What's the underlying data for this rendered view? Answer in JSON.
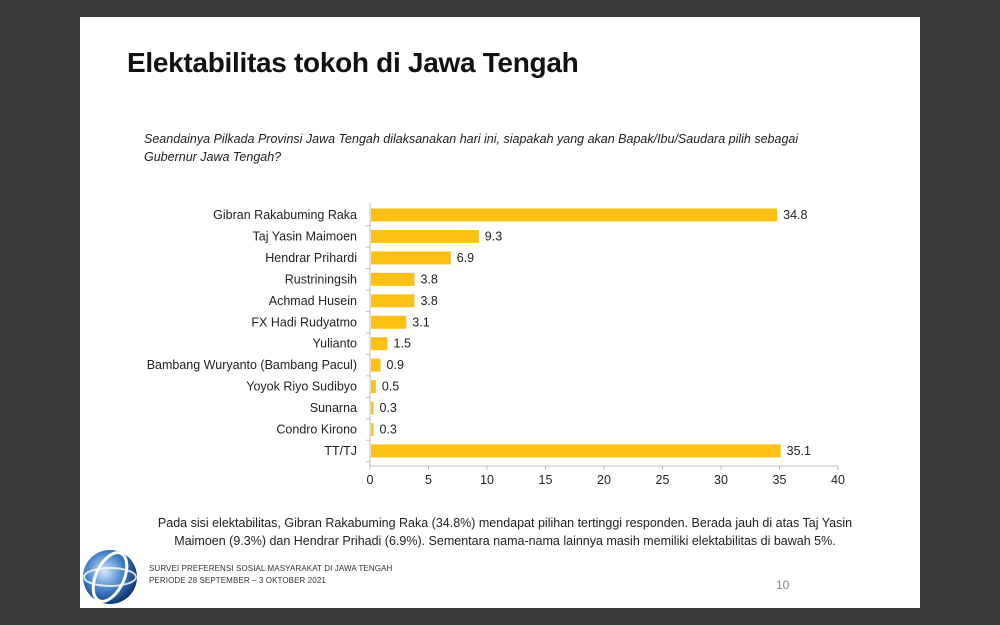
{
  "slide": {
    "title": "Elektabilitas tokoh di Jawa Tengah",
    "question": "Seandainya Pilkada Provinsi Jawa Tengah dilaksanakan hari ini, siapakah yang akan Bapak/Ibu/Saudara pilih sebagai Gubernur Jawa Tengah?",
    "summary": "Pada sisi elektabilitas, Gibran Rakabuming Raka (34.8%) mendapat pilihan tertinggi responden. Berada jauh di atas Taj Yasin Maimoen (9.3%) dan Hendrar Prihadi (6.9%). Sementara nama-nama lainnya masih memiliki elektabilitas di bawah 5%.",
    "footer_line1": "SURVEI PREFERENSI SOSIAL MASYARAKAT DI JAWA TENGAH",
    "footer_line2": "PERIODE 28 SEPTEMBER – 3 OKTOBER 2021",
    "page_number": "10",
    "logo_icon": "globe-logo-icon"
  },
  "colors": {
    "bar": "#FDC113",
    "background_frame": "#3a3a3a",
    "axis": "#bfbfbf"
  },
  "chart_data": {
    "type": "bar",
    "orientation": "horizontal",
    "title": "",
    "xlabel": "",
    "ylabel": "",
    "categories": [
      "Gibran Rakabuming Raka",
      "Taj Yasin Maimoen",
      "Hendrar Prihardi",
      "Rustriningsih",
      "Achmad Husein",
      "FX Hadi Rudyatmo",
      "Yulianto",
      "Bambang Wuryanto (Bambang Pacul)",
      "Yoyok Riyo Sudibyo",
      "Sunarna",
      "Condro Kirono",
      "TT/TJ"
    ],
    "values": [
      34.8,
      9.3,
      6.9,
      3.8,
      3.8,
      3.1,
      1.5,
      0.9,
      0.5,
      0.3,
      0.3,
      35.1
    ],
    "value_labels": [
      "34.8",
      "9.3",
      "6.9",
      "3.8",
      "3.8",
      "3.1",
      "1.5",
      "0.9",
      "0.5",
      "0.3",
      "0.3",
      "35.1"
    ],
    "xlim": [
      0,
      40
    ],
    "xticks": [
      0,
      5,
      10,
      15,
      20,
      25,
      30,
      35,
      40
    ],
    "grid": false,
    "legend": "none"
  }
}
